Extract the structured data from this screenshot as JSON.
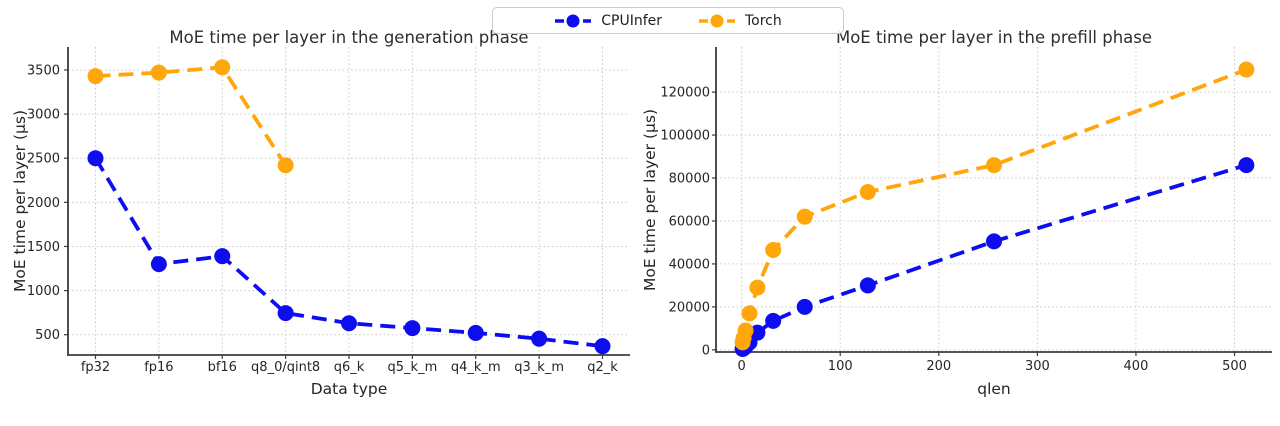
{
  "style": {
    "background": "#ffffff",
    "text_color": "#262626",
    "grid_color": "#c9c9c9",
    "spine_color": "#3b3b3b",
    "legend_border_color": "#cccccc"
  },
  "legend": {
    "position": "top-center",
    "items": [
      {
        "label": "CPUInfer",
        "color": "#0d0df0"
      },
      {
        "label": "Torch",
        "color": "#ffa60a"
      }
    ]
  },
  "chart_data": [
    {
      "type": "line",
      "title": "MoE time per layer in the generation phase",
      "xlabel": "Data type",
      "ylabel": "MoE time per layer (μs)",
      "x_type": "categorical",
      "grid": true,
      "line_style": "dashed",
      "marker": "circle",
      "categories": [
        "fp32",
        "fp16",
        "bf16",
        "q8_0/qint8",
        "q6_k",
        "q5_k_m",
        "q4_k_m",
        "q3_k_m",
        "q2_k"
      ],
      "yticks": [
        500,
        1000,
        1500,
        2000,
        2500,
        3000,
        3500
      ],
      "ylim": [
        270,
        3760
      ],
      "series": [
        {
          "name": "CPUInfer",
          "color": "#0d0df0",
          "values": [
            2500,
            1300,
            1390,
            745,
            630,
            575,
            520,
            455,
            370
          ]
        },
        {
          "name": "Torch",
          "color": "#ffa60a",
          "values": [
            3430,
            3470,
            3530,
            2420,
            null,
            null,
            null,
            null,
            null
          ]
        }
      ]
    },
    {
      "type": "line",
      "title": "MoE time per layer in the prefill phase",
      "xlabel": "qlen",
      "ylabel": "MoE time per layer (μs)",
      "x_type": "linear",
      "grid": true,
      "line_style": "dashed",
      "marker": "circle",
      "x": [
        1,
        2,
        4,
        8,
        16,
        32,
        64,
        128,
        256,
        512
      ],
      "xticks": [
        0,
        100,
        200,
        300,
        400,
        500
      ],
      "xlim": [
        -26,
        538
      ],
      "yticks": [
        0,
        20000,
        40000,
        60000,
        80000,
        100000,
        120000
      ],
      "ylim": [
        -1000,
        141000
      ],
      "series": [
        {
          "name": "CPUInfer",
          "color": "#0d0df0",
          "values": [
            400,
            700,
            1500,
            3500,
            8000,
            13500,
            20000,
            30000,
            50500,
            86000
          ]
        },
        {
          "name": "Torch",
          "color": "#ffa60a",
          "values": [
            3500,
            5500,
            9000,
            17000,
            29000,
            46500,
            62000,
            73500,
            86000,
            130500
          ]
        }
      ]
    }
  ]
}
